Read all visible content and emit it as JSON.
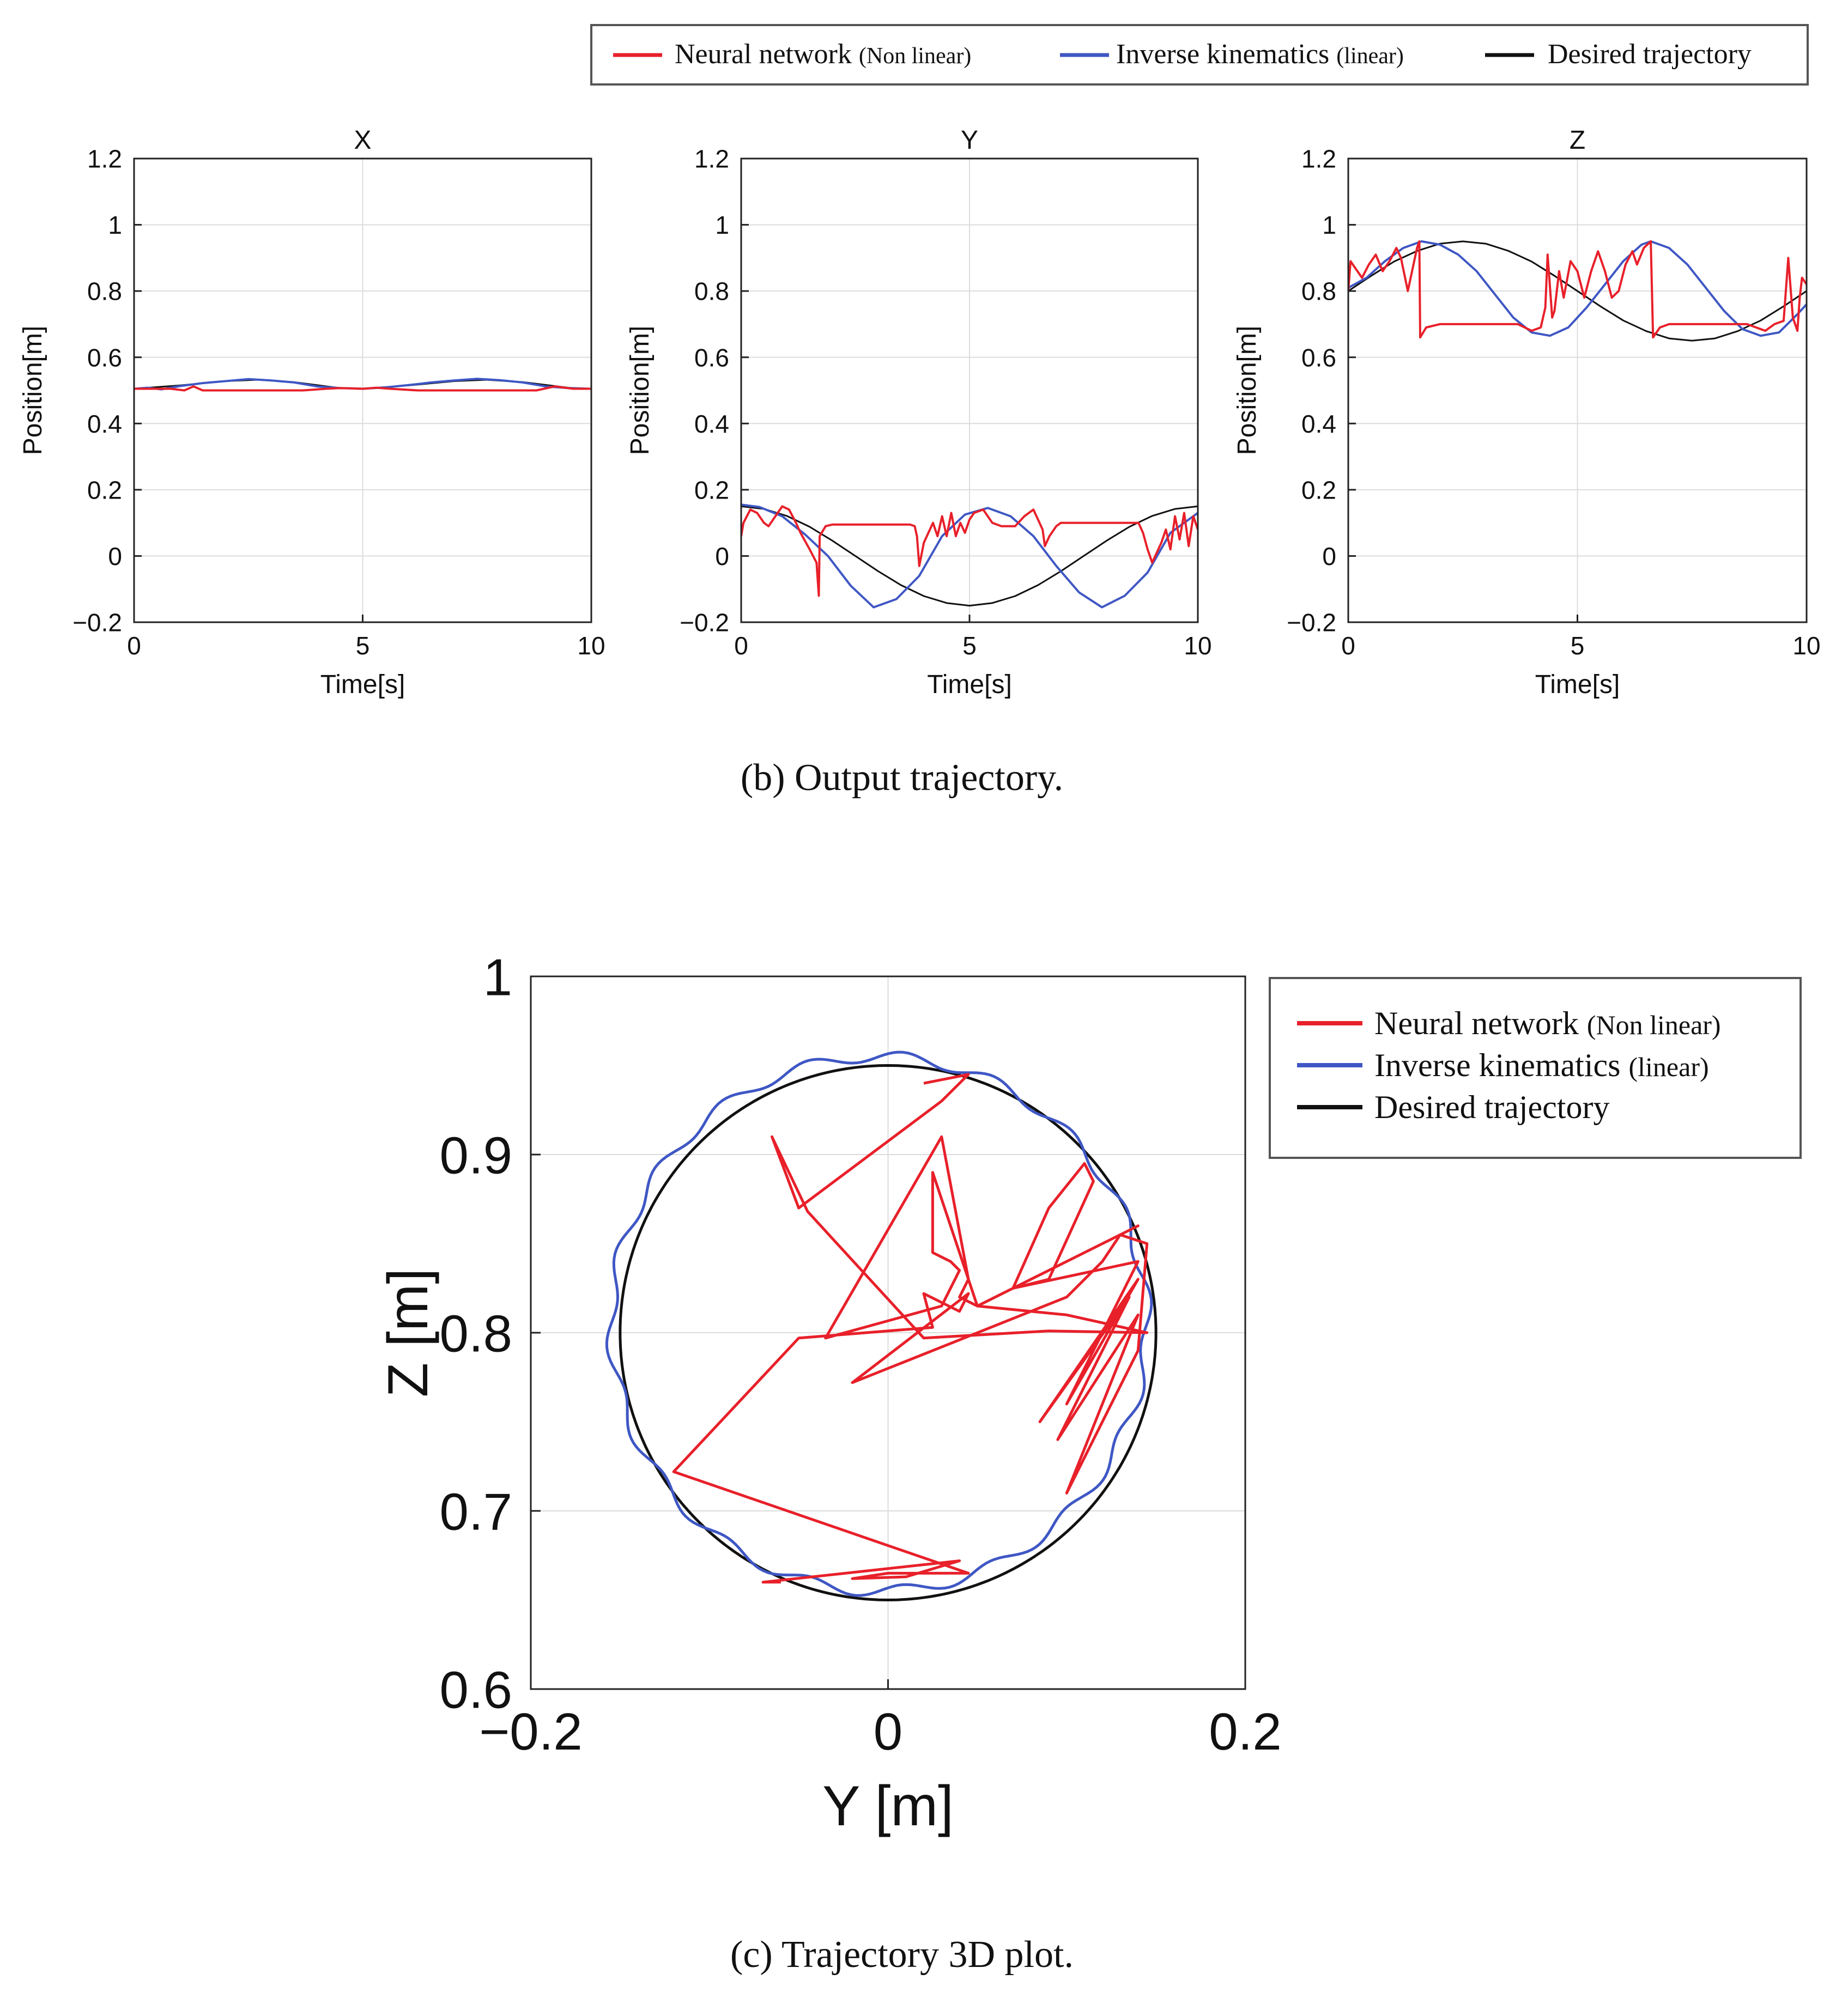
{
  "figure": {
    "caption_b": "(b) Output trajectory.",
    "caption_c": "(c) Trajectory 3D plot."
  },
  "legend_top": {
    "items": [
      {
        "label": "Neural network",
        "qualifier": "(Non linear)",
        "color": "#e8202a"
      },
      {
        "label": "Inverse kinematics",
        "qualifier": "(linear)",
        "color": "#3f57c4"
      },
      {
        "label": "Desired trajectory",
        "qualifier": "",
        "color": "#111111"
      }
    ]
  },
  "legend_c": {
    "items": [
      {
        "label": "Neural network",
        "qualifier": "(Non linear)",
        "color": "#e8202a"
      },
      {
        "label": "Inverse kinematics",
        "qualifier": "(linear)",
        "color": "#3f57c4"
      },
      {
        "label": "Desired trajectory",
        "qualifier": "",
        "color": "#111111"
      }
    ]
  },
  "chart_data": [
    {
      "id": "x",
      "type": "line",
      "title": "X",
      "xlabel": "Time[s]",
      "ylabel": "Position[m]",
      "xlim": [
        0,
        10
      ],
      "ylim": [
        -0.2,
        1.2
      ],
      "xticks": [
        0,
        5,
        10
      ],
      "yticks": [
        -0.2,
        0,
        0.2,
        0.4,
        0.6,
        0.8,
        1,
        1.2
      ],
      "ytick_labels": [
        "−0.2",
        "0",
        "0.2",
        "0.4",
        "0.6",
        "0.8",
        "1",
        "1.2"
      ],
      "grid": true,
      "series": [
        {
          "name": "Desired trajectory",
          "color": "#111111",
          "t": [
            0,
            1,
            2,
            2.7,
            3.5,
            4.5,
            5,
            6,
            7,
            7.7,
            8.5,
            9.5,
            10
          ],
          "v": [
            0.505,
            0.515,
            0.528,
            0.532,
            0.525,
            0.507,
            0.505,
            0.515,
            0.528,
            0.532,
            0.525,
            0.508,
            0.505
          ]
        },
        {
          "name": "Inverse kinematics (linear)",
          "color": "#3f57c4",
          "t": [
            0,
            0.3,
            0.6,
            1,
            1.5,
            2,
            2.5,
            3,
            3.5,
            4,
            4.5,
            5,
            5.5,
            6,
            6.5,
            7,
            7.5,
            8,
            8.5,
            9,
            9.5,
            10
          ],
          "v": [
            0.505,
            0.508,
            0.503,
            0.513,
            0.522,
            0.528,
            0.534,
            0.53,
            0.524,
            0.512,
            0.507,
            0.505,
            0.509,
            0.516,
            0.524,
            0.53,
            0.535,
            0.531,
            0.524,
            0.512,
            0.507,
            0.505
          ]
        },
        {
          "name": "Neural network (Non linear)",
          "color": "#e8202a",
          "t": [
            0,
            0.8,
            1.1,
            1.3,
            1.5,
            3.7,
            4.2,
            4.5,
            5,
            5.3,
            5.6,
            6.2,
            6.6,
            8.8,
            9.2,
            9.6,
            10
          ],
          "v": [
            0.505,
            0.505,
            0.5,
            0.512,
            0.5,
            0.5,
            0.505,
            0.507,
            0.505,
            0.508,
            0.505,
            0.5,
            0.5,
            0.5,
            0.512,
            0.505,
            0.505
          ]
        }
      ]
    },
    {
      "id": "y",
      "type": "line",
      "title": "Y",
      "xlabel": "Time[s]",
      "ylabel": "Position[m]",
      "xlim": [
        0,
        10
      ],
      "ylim": [
        -0.2,
        1.2
      ],
      "xticks": [
        0,
        5,
        10
      ],
      "yticks": [
        -0.2,
        0,
        0.2,
        0.4,
        0.6,
        0.8,
        1,
        1.2
      ],
      "ytick_labels": [
        "−0.2",
        "0",
        "0.2",
        "0.4",
        "0.6",
        "0.8",
        "1",
        "1.2"
      ],
      "grid": true,
      "series": [
        {
          "name": "Desired trajectory",
          "color": "#111111",
          "t": [
            0,
            0.5,
            1,
            1.5,
            2,
            2.5,
            3,
            3.5,
            4,
            4.5,
            5,
            5.5,
            6,
            6.5,
            7,
            7.5,
            8,
            8.5,
            9,
            9.5,
            10
          ],
          "v": [
            0.15,
            0.142,
            0.121,
            0.088,
            0.046,
            0,
            -0.046,
            -0.088,
            -0.121,
            -0.142,
            -0.15,
            -0.142,
            -0.121,
            -0.088,
            -0.046,
            0,
            0.046,
            0.088,
            0.121,
            0.142,
            0.15
          ]
        },
        {
          "name": "Inverse kinematics (linear)",
          "color": "#3f57c4",
          "t": [
            0,
            0.4,
            0.9,
            1.4,
            1.9,
            2.4,
            2.9,
            3.4,
            3.9,
            4.4,
            4.9,
            5.4,
            5.9,
            6.4,
            6.9,
            7.4,
            7.9,
            8.4,
            8.9,
            9.4,
            10
          ],
          "v": [
            0.155,
            0.148,
            0.12,
            0.065,
            0,
            -0.09,
            -0.155,
            -0.13,
            -0.06,
            0.06,
            0.125,
            0.145,
            0.12,
            0.06,
            -0.03,
            -0.11,
            -0.155,
            -0.12,
            -0.05,
            0.07,
            0.13
          ]
        },
        {
          "name": "Neural network (Non linear)",
          "color": "#e8202a",
          "t": [
            0,
            0.05,
            0.2,
            0.35,
            0.5,
            0.6,
            0.75,
            0.9,
            1.05,
            1.2,
            1.3,
            1.5,
            1.65,
            1.7,
            1.72,
            1.85,
            2,
            3.7,
            3.8,
            3.85,
            3.9,
            4.0,
            4.2,
            4.3,
            4.4,
            4.5,
            4.6,
            4.7,
            4.8,
            4.9,
            5.0,
            5.1,
            5.3,
            5.5,
            5.7,
            6.0,
            6.2,
            6.4,
            6.6,
            6.65,
            6.75,
            6.9,
            7.0,
            8.7,
            8.8,
            8.9,
            9.0,
            9.1,
            9.2,
            9.3,
            9.4,
            9.5,
            9.6,
            9.7,
            9.8,
            9.9,
            10
          ],
          "v": [
            0.06,
            0.1,
            0.14,
            0.13,
            0.1,
            0.09,
            0.12,
            0.15,
            0.14,
            0.1,
            0.07,
            0.02,
            -0.02,
            -0.12,
            0.06,
            0.09,
            0.095,
            0.095,
            0.09,
            0.06,
            -0.03,
            0.04,
            0.1,
            0.06,
            0.12,
            0.06,
            0.13,
            0.06,
            0.1,
            0.07,
            0.11,
            0.13,
            0.14,
            0.1,
            0.09,
            0.09,
            0.12,
            0.14,
            0.08,
            0.03,
            0.06,
            0.09,
            0.1,
            0.1,
            0.07,
            0.02,
            -0.02,
            0.01,
            0.04,
            0.08,
            0.02,
            0.12,
            0.05,
            0.13,
            0.03,
            0.12,
            0.08
          ]
        }
      ]
    },
    {
      "id": "z",
      "type": "line",
      "title": "Z",
      "xlabel": "Time[s]",
      "ylabel": "Position[m]",
      "xlim": [
        0,
        10
      ],
      "ylim": [
        -0.2,
        1.2
      ],
      "xticks": [
        0,
        5,
        10
      ],
      "yticks": [
        -0.2,
        0,
        0.2,
        0.4,
        0.6,
        0.8,
        1,
        1.2
      ],
      "ytick_labels": [
        "−0.2",
        "0",
        "0.2",
        "0.4",
        "0.6",
        "0.8",
        "1",
        "1.2"
      ],
      "grid": true,
      "series": [
        {
          "name": "Desired trajectory",
          "color": "#111111",
          "t": [
            0,
            0.5,
            1,
            1.5,
            2,
            2.5,
            3,
            3.5,
            4,
            4.5,
            5,
            5.5,
            6,
            6.5,
            7,
            7.5,
            8,
            8.5,
            9,
            9.5,
            10
          ],
          "v": [
            0.8,
            0.846,
            0.889,
            0.921,
            0.943,
            0.95,
            0.943,
            0.921,
            0.889,
            0.846,
            0.8,
            0.754,
            0.711,
            0.679,
            0.657,
            0.65,
            0.657,
            0.679,
            0.711,
            0.754,
            0.8
          ]
        },
        {
          "name": "Inverse kinematics (linear)",
          "color": "#3f57c4",
          "t": [
            0,
            0.4,
            0.8,
            1.2,
            1.6,
            2,
            2.4,
            2.8,
            3.2,
            3.6,
            4,
            4.4,
            4.8,
            5.2,
            5.6,
            6,
            6.4,
            6.6,
            7,
            7.4,
            7.8,
            8.2,
            8.6,
            9,
            9.4,
            9.8,
            10
          ],
          "v": [
            0.81,
            0.84,
            0.89,
            0.93,
            0.95,
            0.94,
            0.91,
            0.86,
            0.79,
            0.72,
            0.675,
            0.665,
            0.69,
            0.75,
            0.82,
            0.89,
            0.94,
            0.95,
            0.93,
            0.88,
            0.81,
            0.74,
            0.685,
            0.665,
            0.675,
            0.73,
            0.76
          ]
        },
        {
          "name": "Neural network (Non linear)",
          "color": "#e8202a",
          "t": [
            0,
            0.05,
            0.15,
            0.3,
            0.45,
            0.6,
            0.75,
            0.9,
            1.05,
            1.15,
            1.3,
            1.5,
            1.55,
            1.57,
            1.7,
            2,
            3.7,
            4.0,
            4.2,
            4.3,
            4.35,
            4.45,
            4.5,
            4.6,
            4.7,
            4.85,
            5.0,
            5.15,
            5.3,
            5.45,
            5.6,
            5.75,
            5.9,
            6.05,
            6.2,
            6.3,
            6.45,
            6.6,
            6.65,
            6.8,
            7,
            8.7,
            8.9,
            9.1,
            9.3,
            9.5,
            9.6,
            9.7,
            9.8,
            9.85,
            9.9,
            10
          ],
          "v": [
            0.8,
            0.89,
            0.87,
            0.84,
            0.88,
            0.91,
            0.86,
            0.89,
            0.93,
            0.9,
            0.8,
            0.93,
            0.95,
            0.66,
            0.69,
            0.7,
            0.7,
            0.68,
            0.69,
            0.75,
            0.91,
            0.72,
            0.74,
            0.86,
            0.78,
            0.89,
            0.86,
            0.78,
            0.86,
            0.92,
            0.86,
            0.78,
            0.8,
            0.88,
            0.92,
            0.88,
            0.93,
            0.95,
            0.66,
            0.69,
            0.7,
            0.7,
            0.69,
            0.68,
            0.7,
            0.71,
            0.9,
            0.72,
            0.68,
            0.78,
            0.84,
            0.82
          ]
        }
      ]
    },
    {
      "id": "yz",
      "type": "line",
      "xlabel": "Y [m]",
      "ylabel": "Z [m]",
      "xlim": [
        -0.2,
        0.2
      ],
      "ylim": [
        0.6,
        1.0
      ],
      "xticks": [
        -0.2,
        0,
        0.2
      ],
      "xtick_labels": [
        "−0.2",
        "0",
        "0.2"
      ],
      "yticks": [
        0.6,
        0.7,
        0.8,
        0.9,
        1
      ],
      "ytick_labels": [
        "0.6",
        "0.7",
        "0.8",
        "0.9",
        "1"
      ],
      "grid": true,
      "series": [
        {
          "name": "Desired trajectory",
          "color": "#111111",
          "shape": "circle",
          "center": [
            0,
            0.8
          ],
          "radius": 0.15
        },
        {
          "name": "Inverse kinematics (linear)",
          "color": "#3f57c4",
          "shape": "wavy-circle",
          "center": [
            -0.005,
            0.805
          ],
          "radius": 0.15,
          "wobble": 0.003,
          "wobble_count": 18
        },
        {
          "name": "Neural network (Non linear)",
          "color": "#e8202a",
          "y": [
            0.02,
            0.045,
            0.03,
            -0.05,
            -0.065,
            -0.045,
            0.02,
            0.09,
            0.145,
            0.1,
            0.05,
            0.04,
            0.045,
            0.03,
            -0.035,
            0.03,
            0.04,
            0.035,
            0.025,
            0.025,
            0.05,
            0.14,
            0.12,
            0.08,
            0.07,
            0.09,
            0.11,
            0.115,
            0.09,
            0.07,
            0.14,
            0.1,
            0.14,
            0.085,
            0.135,
            0.095,
            0.14,
            0.1,
            0.14,
            0.145,
            0.13,
            0.12,
            0.1,
            -0.02,
            0.045,
            0.04,
            0.02,
            0.025,
            -0.05,
            -0.12,
            0.045,
            0.0,
            -0.02,
            0.01,
            0.04,
            -0.07,
            -0.06
          ],
          "z": [
            0.94,
            0.945,
            0.93,
            0.87,
            0.91,
            0.868,
            0.797,
            0.801,
            0.8,
            0.81,
            0.815,
            0.82,
            0.83,
            0.91,
            0.797,
            0.815,
            0.835,
            0.84,
            0.845,
            0.89,
            0.815,
            0.86,
            0.85,
            0.83,
            0.825,
            0.87,
            0.895,
            0.885,
            0.83,
            0.825,
            0.84,
            0.76,
            0.83,
            0.75,
            0.82,
            0.74,
            0.81,
            0.71,
            0.79,
            0.85,
            0.855,
            0.84,
            0.82,
            0.772,
            0.822,
            0.812,
            0.822,
            0.803,
            0.797,
            0.722,
            0.665,
            0.665,
            0.662,
            0.663,
            0.672,
            0.66,
            0.66
          ]
        }
      ]
    }
  ]
}
